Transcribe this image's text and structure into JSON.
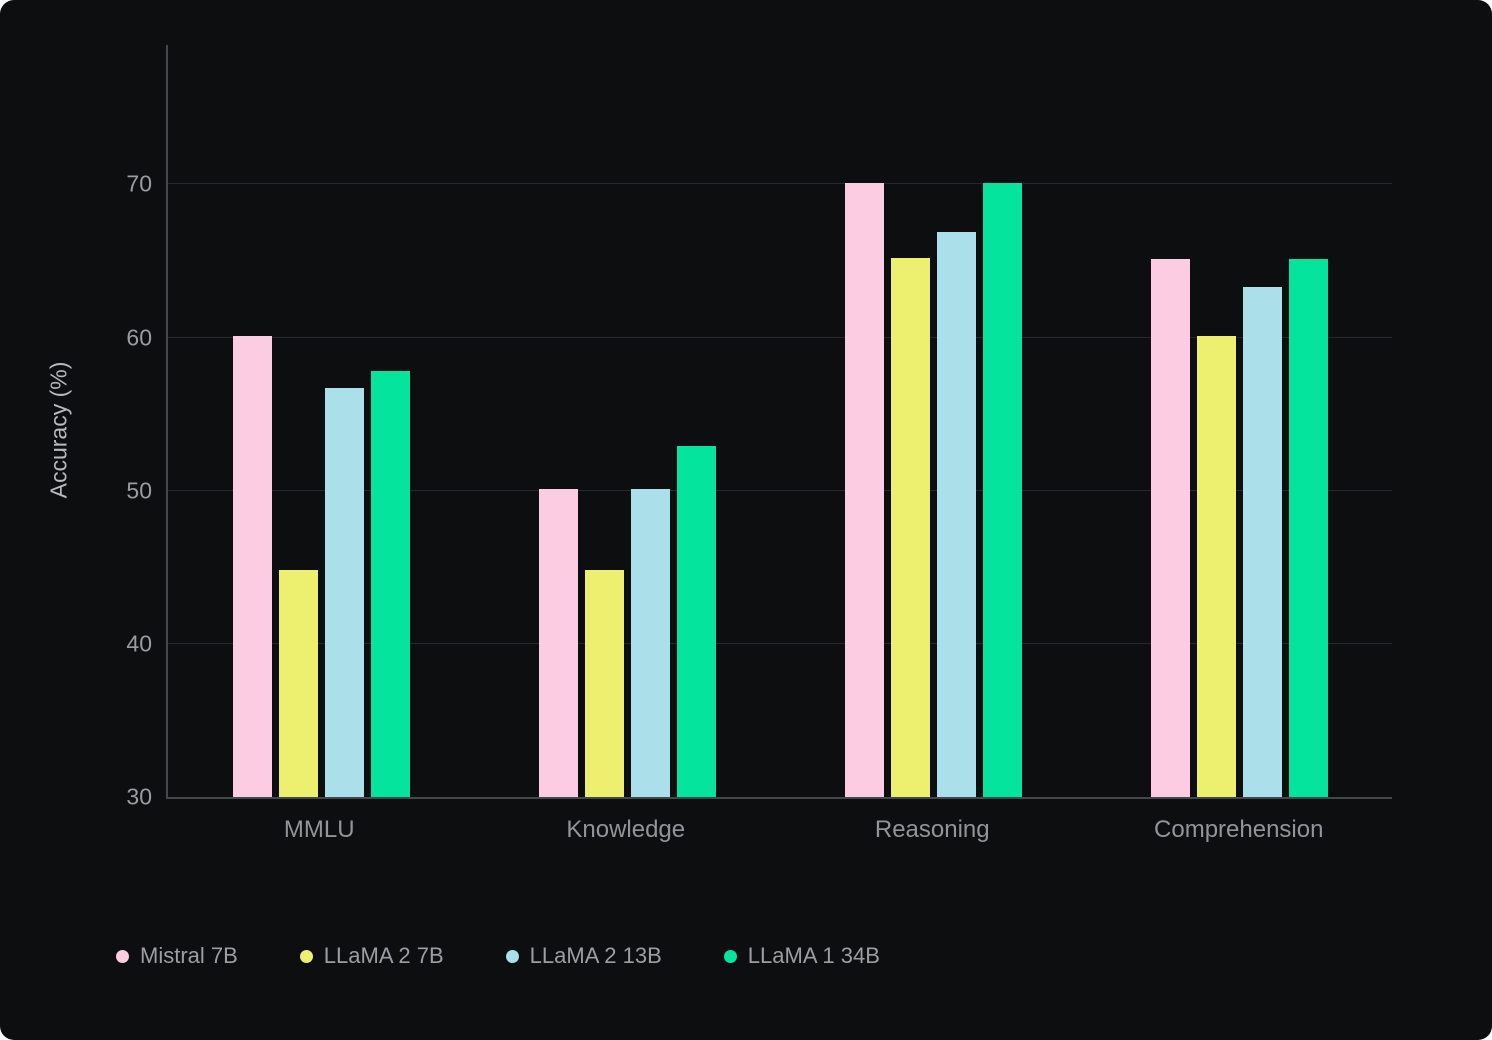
{
  "chart_data": {
    "type": "bar",
    "title": "",
    "categories": [
      "MMLU",
      "Knowledge",
      "Reasoning",
      "Comprehension"
    ],
    "series": [
      {
        "name": "Mistral 7B",
        "color": "#fccde2",
        "values": [
          60.1,
          50.1,
          70.1,
          65.1
        ]
      },
      {
        "name": "LLaMA 2 7B",
        "color": "#edf06f",
        "values": [
          44.8,
          44.8,
          65.2,
          60.1
        ]
      },
      {
        "name": "LLaMA 2 13B",
        "color": "#abdfe9",
        "values": [
          56.7,
          50.1,
          66.9,
          63.3
        ]
      },
      {
        "name": "LLaMA 1 34B",
        "color": "#04e49c",
        "values": [
          57.8,
          52.9,
          70.1,
          65.1
        ]
      }
    ],
    "xlabel": "",
    "ylabel": "Accuracy (%)",
    "yticks": [
      30,
      40,
      50,
      60,
      70
    ],
    "ylim": [
      30,
      79.1
    ],
    "grid": true,
    "legend_position": "bottom-left"
  },
  "colors": {
    "card_background": "#0d0e0f",
    "gridline": "#26282b",
    "axis": "#44474c",
    "tick_label": "#989ca3",
    "category_label": "#90949b",
    "axis_title": "#b7babf",
    "legend_text": "#9b9ea5"
  }
}
